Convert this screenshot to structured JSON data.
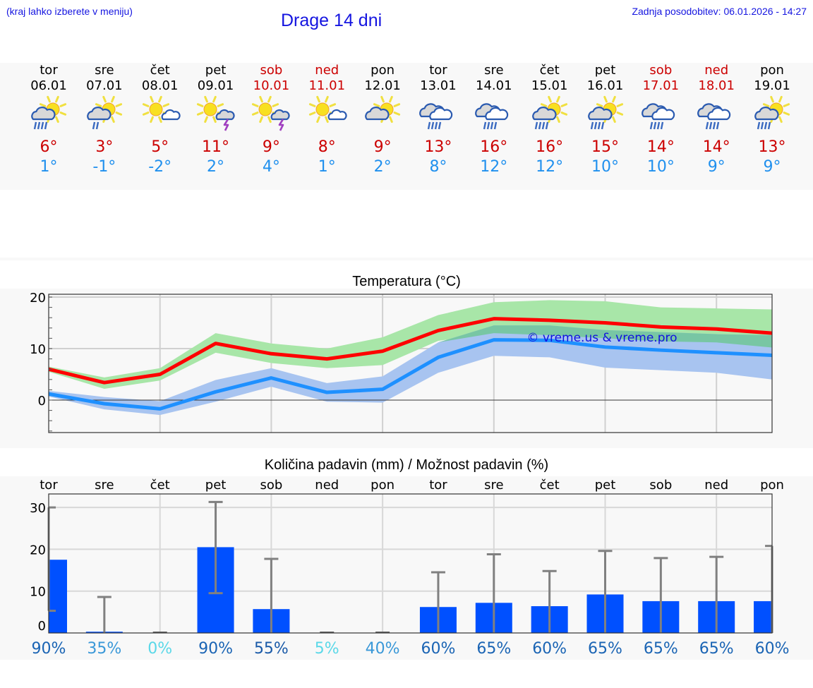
{
  "header": {
    "hint": "(kraj lahko izberete v meniju)",
    "title": "Drage 14 dni",
    "updated": "Zadnja posodobitev: 06.01.2026 - 14:27"
  },
  "days": [
    {
      "name": "tor",
      "date": "06.01",
      "weekend": false,
      "icon": "sun-cloud-rain-icon",
      "tmax": "6°",
      "tmin": "1°"
    },
    {
      "name": "sre",
      "date": "07.01",
      "weekend": false,
      "icon": "sun-cloud-light-rain-icon",
      "tmax": "3°",
      "tmin": "-1°"
    },
    {
      "name": "čet",
      "date": "08.01",
      "weekend": false,
      "icon": "sun-small-cloud-icon",
      "tmax": "5°",
      "tmin": "-2°"
    },
    {
      "name": "pet",
      "date": "09.01",
      "weekend": false,
      "icon": "sun-thunderstorm-icon",
      "tmax": "11°",
      "tmin": "2°"
    },
    {
      "name": "sob",
      "date": "10.01",
      "weekend": true,
      "icon": "sun-thunderstorm-icon",
      "tmax": "9°",
      "tmin": "4°"
    },
    {
      "name": "ned",
      "date": "11.01",
      "weekend": true,
      "icon": "sun-small-cloud-icon",
      "tmax": "8°",
      "tmin": "1°"
    },
    {
      "name": "pon",
      "date": "12.01",
      "weekend": false,
      "icon": "sun-cloud-icon",
      "tmax": "9°",
      "tmin": "2°"
    },
    {
      "name": "tor",
      "date": "13.01",
      "weekend": false,
      "icon": "cloud-rain-icon",
      "tmax": "13°",
      "tmin": "8°"
    },
    {
      "name": "sre",
      "date": "14.01",
      "weekend": false,
      "icon": "cloud-rain-icon",
      "tmax": "16°",
      "tmin": "12°"
    },
    {
      "name": "čet",
      "date": "15.01",
      "weekend": false,
      "icon": "sun-cloud-rain-icon",
      "tmax": "16°",
      "tmin": "12°"
    },
    {
      "name": "pet",
      "date": "16.01",
      "weekend": false,
      "icon": "sun-cloud-rain-icon",
      "tmax": "15°",
      "tmin": "10°"
    },
    {
      "name": "sob",
      "date": "17.01",
      "weekend": true,
      "icon": "cloud-rain-icon",
      "tmax": "14°",
      "tmin": "10°"
    },
    {
      "name": "ned",
      "date": "18.01",
      "weekend": true,
      "icon": "cloud-rain-icon",
      "tmax": "14°",
      "tmin": "9°"
    },
    {
      "name": "pon",
      "date": "19.01",
      "weekend": false,
      "icon": "sun-cloud-rain-icon",
      "tmax": "13°",
      "tmin": "9°"
    }
  ],
  "colors": {
    "header_text": "#1515e0",
    "tmax": "#cc0000",
    "tmin": "#2090ee",
    "max_line": "#ff0000",
    "min_line": "#1e90ff",
    "max_band": "#a8e6a8",
    "min_band": "#a8c4f0",
    "overlap_band": "#78c6a4",
    "precip_bar": "#0050ff",
    "error_bar": "#808080"
  },
  "chart_data": [
    {
      "type": "line",
      "title": "Temperatura (°C)",
      "watermark": "© vreme.us & vreme.pro",
      "xlabel": "",
      "ylabel": "",
      "ylim": [
        -6.3,
        20.5
      ],
      "yticks": [
        0,
        10,
        20
      ],
      "grid": true,
      "categories": [
        "06.01",
        "07.01",
        "08.01",
        "09.01",
        "10.01",
        "11.01",
        "12.01",
        "13.01",
        "14.01",
        "15.01",
        "16.01",
        "17.01",
        "18.01",
        "19.01"
      ],
      "series": [
        {
          "name": "max",
          "values": [
            6,
            3.4,
            5,
            11,
            9,
            8,
            9.5,
            13.5,
            15.8,
            15.5,
            15,
            14.2,
            13.8,
            13
          ]
        },
        {
          "name": "max_upper",
          "values": [
            6.5,
            4.4,
            6.2,
            13,
            11,
            10,
            12.2,
            16.5,
            19,
            19.4,
            19.2,
            18,
            17.8,
            17.6
          ]
        },
        {
          "name": "max_lower",
          "values": [
            5.5,
            2.2,
            3.8,
            9.2,
            7.2,
            6.2,
            6.8,
            11.5,
            13,
            12.6,
            12,
            11.4,
            11.2,
            10.2
          ]
        },
        {
          "name": "min",
          "values": [
            1.2,
            -0.7,
            -1.7,
            1.6,
            4.3,
            1.5,
            2.1,
            8.3,
            11.7,
            11.6,
            10.3,
            9.7,
            9.2,
            8.7
          ]
        },
        {
          "name": "min_upper",
          "values": [
            1.8,
            0.6,
            -0.2,
            3.9,
            6.2,
            3.3,
            4.6,
            11.2,
            14.5,
            14.5,
            13.6,
            13.2,
            12.8,
            12.6
          ]
        },
        {
          "name": "min_lower",
          "values": [
            0.7,
            -1.8,
            -2.9,
            -0.3,
            2.6,
            -0.3,
            -0.5,
            5.3,
            8.6,
            8.3,
            6.3,
            5.8,
            5.3,
            4.0
          ]
        }
      ]
    },
    {
      "type": "bar",
      "title": "Količina padavin (mm) / Možnost padavin (%)",
      "xlabel": "",
      "ylabel": "",
      "ylim": [
        -1.5,
        33
      ],
      "yticks": [
        0,
        10,
        20,
        30
      ],
      "grid": true,
      "categories": [
        "tor",
        "sre",
        "čet",
        "pet",
        "sob",
        "ned",
        "pon",
        "tor",
        "sre",
        "čet",
        "pet",
        "sob",
        "ned",
        "pon"
      ],
      "series": [
        {
          "name": "precip_mm",
          "values": [
            17.5,
            0.3,
            0,
            20.5,
            5.7,
            0,
            0,
            6.2,
            7.2,
            6.4,
            9.2,
            7.6,
            7.6,
            7.6
          ]
        },
        {
          "name": "error_high",
          "values": [
            30,
            8.6,
            0,
            31.3,
            17.7,
            0,
            0,
            14.5,
            18.8,
            14.8,
            19.6,
            17.9,
            18.2,
            20.8
          ]
        },
        {
          "name": "error_low",
          "values": [
            5.3,
            0,
            0,
            9.5,
            0,
            0,
            0,
            0,
            0,
            0,
            0,
            0,
            0,
            0
          ]
        }
      ],
      "probability": [
        "90%",
        "35%",
        "0%",
        "90%",
        "55%",
        "5%",
        "40%",
        "60%",
        "65%",
        "60%",
        "65%",
        "65%",
        "65%",
        "60%"
      ],
      "probability_colors": [
        "#1a64b4",
        "#3a98d8",
        "#5ad8e8",
        "#1a64b4",
        "#1a5aa8",
        "#5ad8e8",
        "#3a98d8",
        "#1a64b4",
        "#1a64b4",
        "#1a64b4",
        "#1a64b4",
        "#1a64b4",
        "#1a64b4",
        "#1a64b4"
      ]
    }
  ]
}
